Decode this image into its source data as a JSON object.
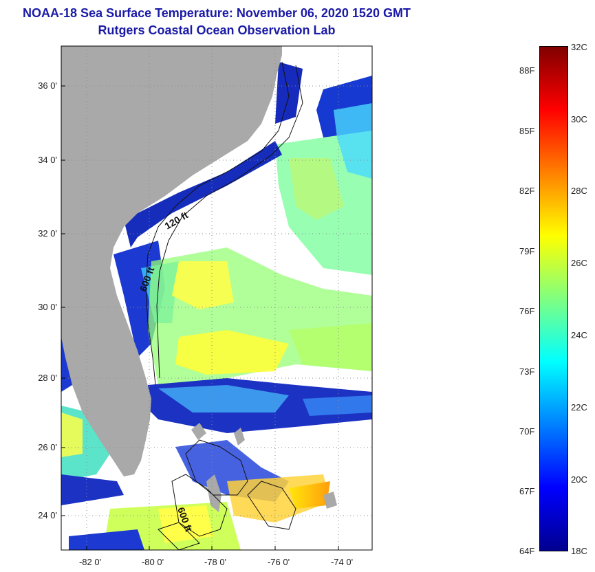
{
  "title": {
    "line1": "NOAA-18 Sea Surface Temperature:  November 06, 2020 1520 GMT",
    "line2": "Rutgers Coastal Ocean Observation Lab"
  },
  "map": {
    "lat_labels": [
      "36 0'",
      "34 0'",
      "32 0'",
      "30 0'",
      "28 0'",
      "26 0'",
      "24 0'"
    ],
    "lon_labels": [
      "-82 0'",
      "-80 0'",
      "-78 0'",
      "-76 0'",
      "-74 0'"
    ],
    "contour_labels": [
      "120 ft",
      "600 ft",
      "600 ft"
    ],
    "colors": {
      "land": "#a9a9a9",
      "ocean_nodata": "#ffffff",
      "graticule": "#9a9a9a"
    }
  },
  "colorbar": {
    "fahrenheit_labels": [
      "88F",
      "85F",
      "82F",
      "79F",
      "76F",
      "73F",
      "70F",
      "67F",
      "64F"
    ],
    "celsius_labels": [
      "32C",
      "30C",
      "28C",
      "26C",
      "24C",
      "22C",
      "20C",
      "18C"
    ],
    "colors": [
      "#00008f",
      "#0000ff",
      "#0080ff",
      "#00ffff",
      "#80ff80",
      "#ffff00",
      "#ff8000",
      "#ff0000",
      "#800000"
    ]
  }
}
